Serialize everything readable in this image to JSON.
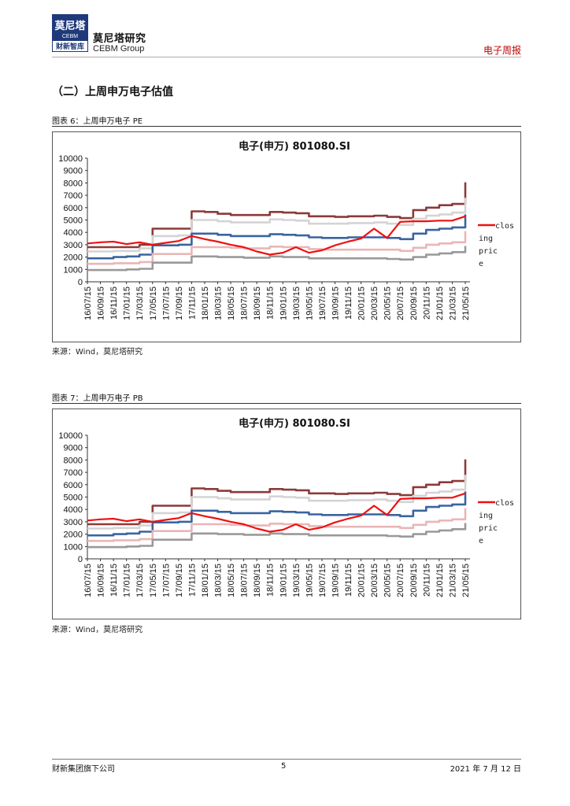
{
  "header": {
    "logo_top": "莫尼塔",
    "logo_mid": "CEBM",
    "logo_bottom": "财新智库",
    "brand_cn": "莫尼塔研究",
    "brand_en": "CEBM Group",
    "report_type": "电子周报",
    "colors": {
      "logo_bg": "#1f3a7a",
      "accent": "#c00000"
    }
  },
  "section": {
    "title": "（二）上周申万电子估值"
  },
  "figures": [
    {
      "label": "图表 6：上周申万电子 PE",
      "source": "来源：Wind，莫尼塔研究"
    },
    {
      "label": "图表 7：上周申万电子 PB",
      "source": "来源：Wind，莫尼塔研究"
    }
  ],
  "chart_data": [
    {
      "type": "line",
      "title": "电子(申万) 801080.SI",
      "xlabel": "",
      "ylabel": "",
      "ylim": [
        0,
        10000
      ],
      "yticks": [
        0,
        1000,
        2000,
        3000,
        4000,
        5000,
        6000,
        7000,
        8000,
        9000,
        10000
      ],
      "categories": [
        "16/07/15",
        "16/09/15",
        "16/11/15",
        "17/01/15",
        "17/03/15",
        "17/05/15",
        "17/07/15",
        "17/09/15",
        "17/11/15",
        "18/01/15",
        "18/03/15",
        "18/05/15",
        "18/07/15",
        "18/09/15",
        "18/11/15",
        "19/01/15",
        "19/03/15",
        "19/05/15",
        "19/07/15",
        "19/09/15",
        "19/11/15",
        "20/01/15",
        "20/03/15",
        "20/05/15",
        "20/07/15",
        "20/09/15",
        "20/11/15",
        "21/01/15",
        "21/03/15",
        "21/05/15"
      ],
      "legend": {
        "position": "right",
        "entries": [
          "closing price"
        ]
      },
      "series": [
        {
          "name": "closing price",
          "color": "#ee1111",
          "values": [
            3100,
            3200,
            3250,
            3050,
            3200,
            3000,
            3150,
            3300,
            3700,
            3450,
            3250,
            3000,
            2800,
            2450,
            2200,
            2350,
            2800,
            2350,
            2550,
            2950,
            3250,
            3500,
            4300,
            3550,
            4850,
            4900,
            4900,
            4950,
            4950,
            5300
          ]
        },
        {
          "color": "#8b3a3a",
          "values": [
            2800,
            2800,
            2800,
            2800,
            3000,
            4300,
            4300,
            4300,
            5700,
            5650,
            5500,
            5400,
            5400,
            5400,
            5650,
            5600,
            5550,
            5300,
            5300,
            5250,
            5300,
            5300,
            5350,
            5250,
            5150,
            5800,
            6000,
            6200,
            6300,
            8050
          ]
        },
        {
          "color": "#d4d4d4",
          "values": [
            2450,
            2450,
            2500,
            2500,
            2700,
            3700,
            3700,
            3750,
            5000,
            5000,
            4900,
            4800,
            4800,
            4800,
            5050,
            5000,
            4950,
            4700,
            4700,
            4700,
            4750,
            4750,
            4800,
            4700,
            4600,
            5100,
            5350,
            5450,
            5600,
            6800
          ]
        },
        {
          "color": "#3a64a0",
          "values": [
            1900,
            1900,
            2000,
            2050,
            2200,
            2950,
            2950,
            3000,
            3900,
            3900,
            3800,
            3700,
            3700,
            3700,
            3850,
            3800,
            3750,
            3600,
            3550,
            3550,
            3600,
            3600,
            3600,
            3550,
            3450,
            3900,
            4200,
            4300,
            4400,
            5450
          ]
        },
        {
          "color": "#eab6b6",
          "values": [
            1450,
            1450,
            1500,
            1500,
            1600,
            2250,
            2250,
            2250,
            2800,
            2800,
            2800,
            2750,
            2700,
            2700,
            2850,
            2800,
            2800,
            2650,
            2600,
            2600,
            2600,
            2600,
            2600,
            2600,
            2500,
            2750,
            3000,
            3100,
            3200,
            4100
          ]
        },
        {
          "color": "#999999",
          "values": [
            950,
            950,
            950,
            1000,
            1050,
            1550,
            1550,
            1550,
            2050,
            2050,
            2000,
            2000,
            1950,
            1950,
            2050,
            2000,
            2000,
            1900,
            1900,
            1900,
            1900,
            1900,
            1900,
            1850,
            1800,
            2000,
            2200,
            2300,
            2400,
            2900
          ]
        }
      ]
    },
    {
      "type": "line",
      "title": "电子(申万) 801080.SI",
      "xlabel": "",
      "ylabel": "",
      "ylim": [
        0,
        10000
      ],
      "yticks": [
        0,
        1000,
        2000,
        3000,
        4000,
        5000,
        6000,
        7000,
        8000,
        9000,
        10000
      ],
      "categories": [
        "16/07/15",
        "16/09/15",
        "16/11/15",
        "17/01/15",
        "17/03/15",
        "17/05/15",
        "17/07/15",
        "17/09/15",
        "17/11/15",
        "18/01/15",
        "18/03/15",
        "18/05/15",
        "18/07/15",
        "18/09/15",
        "18/11/15",
        "19/01/15",
        "19/03/15",
        "19/05/15",
        "19/07/15",
        "19/09/15",
        "19/11/15",
        "20/01/15",
        "20/03/15",
        "20/05/15",
        "20/07/15",
        "20/09/15",
        "20/11/15",
        "21/01/15",
        "21/03/15",
        "21/05/15"
      ],
      "legend": {
        "position": "right",
        "entries": [
          "closing price"
        ]
      },
      "series": [
        {
          "name": "closing price",
          "color": "#ee1111",
          "values": [
            3100,
            3200,
            3250,
            3050,
            3200,
            3000,
            3150,
            3300,
            3700,
            3450,
            3250,
            3000,
            2800,
            2450,
            2200,
            2350,
            2800,
            2350,
            2550,
            2950,
            3250,
            3500,
            4300,
            3550,
            4850,
            4900,
            4900,
            4950,
            4950,
            5300
          ]
        },
        {
          "color": "#8b3a3a",
          "values": [
            2800,
            2800,
            2800,
            2800,
            3000,
            4300,
            4300,
            4300,
            5700,
            5650,
            5500,
            5400,
            5400,
            5400,
            5650,
            5600,
            5550,
            5300,
            5300,
            5250,
            5300,
            5300,
            5350,
            5250,
            5150,
            5800,
            6000,
            6200,
            6300,
            8050
          ]
        },
        {
          "color": "#d4d4d4",
          "values": [
            2450,
            2450,
            2500,
            2500,
            2700,
            3700,
            3700,
            3750,
            5000,
            5000,
            4900,
            4800,
            4800,
            4800,
            5050,
            5000,
            4950,
            4700,
            4700,
            4700,
            4750,
            4750,
            4800,
            4700,
            4600,
            5100,
            5350,
            5450,
            5600,
            6800
          ]
        },
        {
          "color": "#3a64a0",
          "values": [
            1900,
            1900,
            2000,
            2050,
            2200,
            2950,
            2950,
            3000,
            3900,
            3900,
            3800,
            3700,
            3700,
            3700,
            3850,
            3800,
            3750,
            3600,
            3550,
            3550,
            3600,
            3600,
            3600,
            3550,
            3450,
            3900,
            4200,
            4300,
            4400,
            5450
          ]
        },
        {
          "color": "#eab6b6",
          "values": [
            1450,
            1450,
            1500,
            1500,
            1600,
            2250,
            2250,
            2250,
            2800,
            2800,
            2800,
            2750,
            2700,
            2700,
            2850,
            2800,
            2800,
            2650,
            2600,
            2600,
            2600,
            2600,
            2600,
            2600,
            2500,
            2750,
            3000,
            3100,
            3200,
            4100
          ]
        },
        {
          "color": "#999999",
          "values": [
            950,
            950,
            950,
            1000,
            1050,
            1550,
            1550,
            1550,
            2050,
            2050,
            2000,
            2000,
            1950,
            1950,
            2050,
            2000,
            2000,
            1900,
            1900,
            1900,
            1900,
            1900,
            1900,
            1850,
            1800,
            2000,
            2200,
            2300,
            2400,
            2900
          ]
        }
      ]
    }
  ],
  "footer": {
    "left": "财新集团旗下公司",
    "page": "5",
    "date": "2021 年 7 月 12 日"
  }
}
